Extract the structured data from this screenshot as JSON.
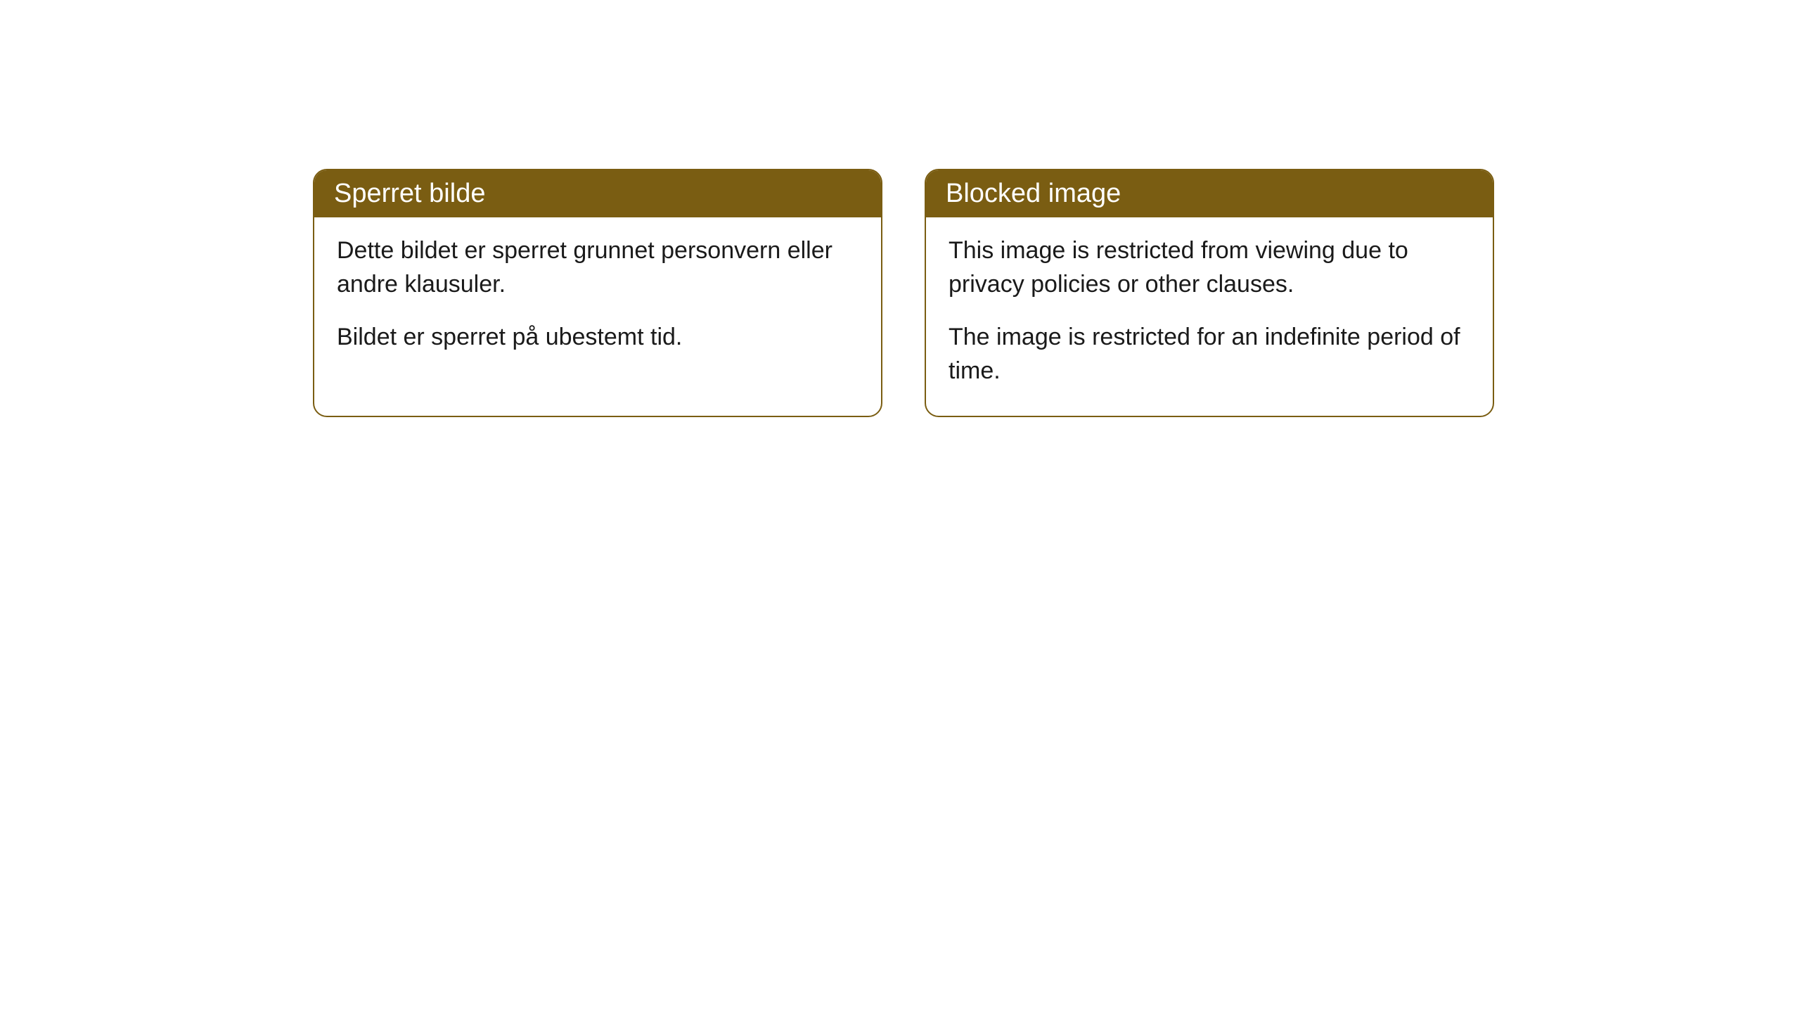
{
  "cards": [
    {
      "title": "Sperret bilde",
      "paragraph1": "Dette bildet er sperret grunnet personvern eller andre klausuler.",
      "paragraph2": "Bildet er sperret på ubestemt tid."
    },
    {
      "title": "Blocked image",
      "paragraph1": "This image is restricted from viewing due to privacy policies or other clauses.",
      "paragraph2": "The image is restricted for an indefinite period of time."
    }
  ],
  "styling": {
    "header_bg_color": "#7a5d12",
    "header_text_color": "#ffffff",
    "border_color": "#7a5d12",
    "body_bg_color": "#ffffff",
    "body_text_color": "#1a1a1a",
    "border_radius": 20,
    "title_fontsize": 38,
    "body_fontsize": 34
  }
}
